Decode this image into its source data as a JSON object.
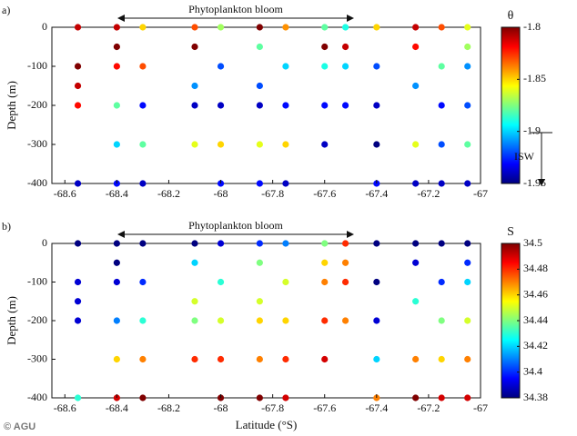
{
  "credit": "© AGU",
  "chart_data": [
    {
      "type": "scatter",
      "panel_label": "a)",
      "annotation": "Phytoplankton bloom",
      "ylabel": "Depth (m)",
      "colorbar_label": "θ",
      "colorbar_annotation": "ISW",
      "colormap": "jet",
      "xlim": [
        -68.65,
        -67
      ],
      "xticks": [
        -68.6,
        -68.4,
        -68.2,
        -68,
        -67.8,
        -67.6,
        -67.4,
        -67.2,
        -67
      ],
      "ylim": [
        -400,
        0
      ],
      "yticks": [
        0,
        -100,
        -200,
        -300,
        -400
      ],
      "clim": [
        -1.95,
        -1.8
      ],
      "cticks": [
        -1.8,
        -1.85,
        -1.9,
        -1.95
      ],
      "x": [
        -68.55,
        -68.55,
        -68.55,
        -68.55,
        -68.55,
        -68.4,
        -68.4,
        -68.4,
        -68.4,
        -68.4,
        -68.4,
        -68.3,
        -68.3,
        -68.3,
        -68.3,
        -68.3,
        -68.1,
        -68.1,
        -68.1,
        -68.1,
        -68.1,
        -68,
        -68,
        -68,
        -68,
        -68,
        -67.85,
        -67.85,
        -67.85,
        -67.85,
        -67.85,
        -67.85,
        -67.75,
        -67.75,
        -67.75,
        -67.75,
        -67.75,
        -67.6,
        -67.6,
        -67.6,
        -67.6,
        -67.6,
        -67.52,
        -67.52,
        -67.52,
        -67.52,
        -67.4,
        -67.4,
        -67.4,
        -67.4,
        -67.4,
        -67.25,
        -67.25,
        -67.25,
        -67.25,
        -67.25,
        -67.15,
        -67.15,
        -67.15,
        -67.15,
        -67.15,
        -67.05,
        -67.05,
        -67.05,
        -67.05,
        -67.05,
        -67.05
      ],
      "y": [
        0,
        -100,
        -150,
        -200,
        -400,
        0,
        -50,
        -100,
        -200,
        -300,
        -400,
        0,
        -100,
        -200,
        -300,
        -400,
        0,
        -50,
        -150,
        -200,
        -300,
        0,
        -100,
        -200,
        -300,
        -400,
        0,
        -50,
        -150,
        -200,
        -300,
        -400,
        0,
        -100,
        -200,
        -300,
        -400,
        0,
        -50,
        -100,
        -200,
        -300,
        0,
        -50,
        -100,
        -200,
        0,
        -100,
        -200,
        -300,
        -400,
        0,
        -50,
        -150,
        -300,
        -400,
        0,
        -100,
        -200,
        -300,
        -400,
        0,
        -50,
        -100,
        -200,
        -300,
        -400
      ],
      "c": [
        -1.81,
        -1.8,
        -1.81,
        -1.82,
        -1.94,
        -1.81,
        -1.8,
        -1.82,
        -1.88,
        -1.9,
        -1.93,
        -1.85,
        -1.83,
        -1.93,
        -1.88,
        -1.94,
        -1.83,
        -1.8,
        -1.91,
        -1.94,
        -1.86,
        -1.87,
        -1.92,
        -1.94,
        -1.85,
        -1.93,
        -1.8,
        -1.88,
        -1.92,
        -1.94,
        -1.86,
        -1.93,
        -1.84,
        -1.9,
        -1.93,
        -1.85,
        -1.94,
        -1.88,
        -1.8,
        -1.89,
        -1.93,
        -1.94,
        -1.89,
        -1.81,
        -1.9,
        -1.93,
        -1.85,
        -1.92,
        -1.94,
        -1.95,
        -1.93,
        -1.81,
        -1.82,
        -1.91,
        -1.86,
        -1.94,
        -1.83,
        -1.88,
        -1.93,
        -1.92,
        -1.94,
        -1.86,
        -1.87,
        -1.91,
        -1.92,
        -1.88,
        -1.94
      ]
    },
    {
      "type": "scatter",
      "panel_label": "b)",
      "annotation": "Phytoplankton bloom",
      "ylabel": "Depth (m)",
      "xlabel": "Latitude (°S)",
      "colorbar_label": "S",
      "colormap": "jet",
      "xlim": [
        -68.65,
        -67
      ],
      "xticks": [
        -68.6,
        -68.4,
        -68.2,
        -68,
        -67.8,
        -67.6,
        -67.4,
        -67.2,
        -67
      ],
      "ylim": [
        -400,
        0
      ],
      "yticks": [
        0,
        -100,
        -200,
        -300,
        -400
      ],
      "clim": [
        34.38,
        34.5
      ],
      "cticks": [
        34.5,
        34.48,
        34.46,
        34.44,
        34.42,
        34.4,
        34.38
      ],
      "x": [
        -68.55,
        -68.55,
        -68.55,
        -68.55,
        -68.55,
        -68.4,
        -68.4,
        -68.4,
        -68.4,
        -68.4,
        -68.4,
        -68.3,
        -68.3,
        -68.3,
        -68.3,
        -68.3,
        -68.1,
        -68.1,
        -68.1,
        -68.1,
        -68.1,
        -68,
        -68,
        -68,
        -68,
        -68,
        -67.85,
        -67.85,
        -67.85,
        -67.85,
        -67.85,
        -67.85,
        -67.75,
        -67.75,
        -67.75,
        -67.75,
        -67.75,
        -67.6,
        -67.6,
        -67.6,
        -67.6,
        -67.6,
        -67.52,
        -67.52,
        -67.52,
        -67.52,
        -67.4,
        -67.4,
        -67.4,
        -67.4,
        -67.4,
        -67.25,
        -67.25,
        -67.25,
        -67.25,
        -67.25,
        -67.15,
        -67.15,
        -67.15,
        -67.15,
        -67.15,
        -67.05,
        -67.05,
        -67.05,
        -67.05,
        -67.05,
        -67.05
      ],
      "y": [
        0,
        -100,
        -150,
        -200,
        -400,
        0,
        -50,
        -100,
        -200,
        -300,
        -400,
        0,
        -100,
        -200,
        -300,
        -400,
        0,
        -50,
        -150,
        -200,
        -300,
        0,
        -100,
        -200,
        -300,
        -400,
        0,
        -50,
        -150,
        -200,
        -300,
        -400,
        0,
        -100,
        -200,
        -300,
        -400,
        0,
        -50,
        -100,
        -200,
        -300,
        0,
        -50,
        -100,
        -200,
        0,
        -100,
        -200,
        -300,
        -400,
        0,
        -50,
        -150,
        -300,
        -400,
        0,
        -100,
        -200,
        -300,
        -400,
        0,
        -50,
        -100,
        -200,
        -300,
        -400
      ],
      "c": [
        34.38,
        34.39,
        34.39,
        34.39,
        34.43,
        34.38,
        34.38,
        34.39,
        34.41,
        34.46,
        34.49,
        34.38,
        34.4,
        34.43,
        34.47,
        34.5,
        34.38,
        34.42,
        34.45,
        34.44,
        34.48,
        34.39,
        34.43,
        34.45,
        34.48,
        34.5,
        34.4,
        34.44,
        34.45,
        34.46,
        34.47,
        34.5,
        34.41,
        34.45,
        34.46,
        34.48,
        34.49,
        34.44,
        34.46,
        34.47,
        34.48,
        34.49,
        34.48,
        34.47,
        34.48,
        34.47,
        34.38,
        34.38,
        34.39,
        34.42,
        34.47,
        34.38,
        34.39,
        34.43,
        34.47,
        34.5,
        34.38,
        34.4,
        34.44,
        34.46,
        34.49,
        34.38,
        34.4,
        34.42,
        34.45,
        34.47,
        34.49
      ]
    }
  ]
}
